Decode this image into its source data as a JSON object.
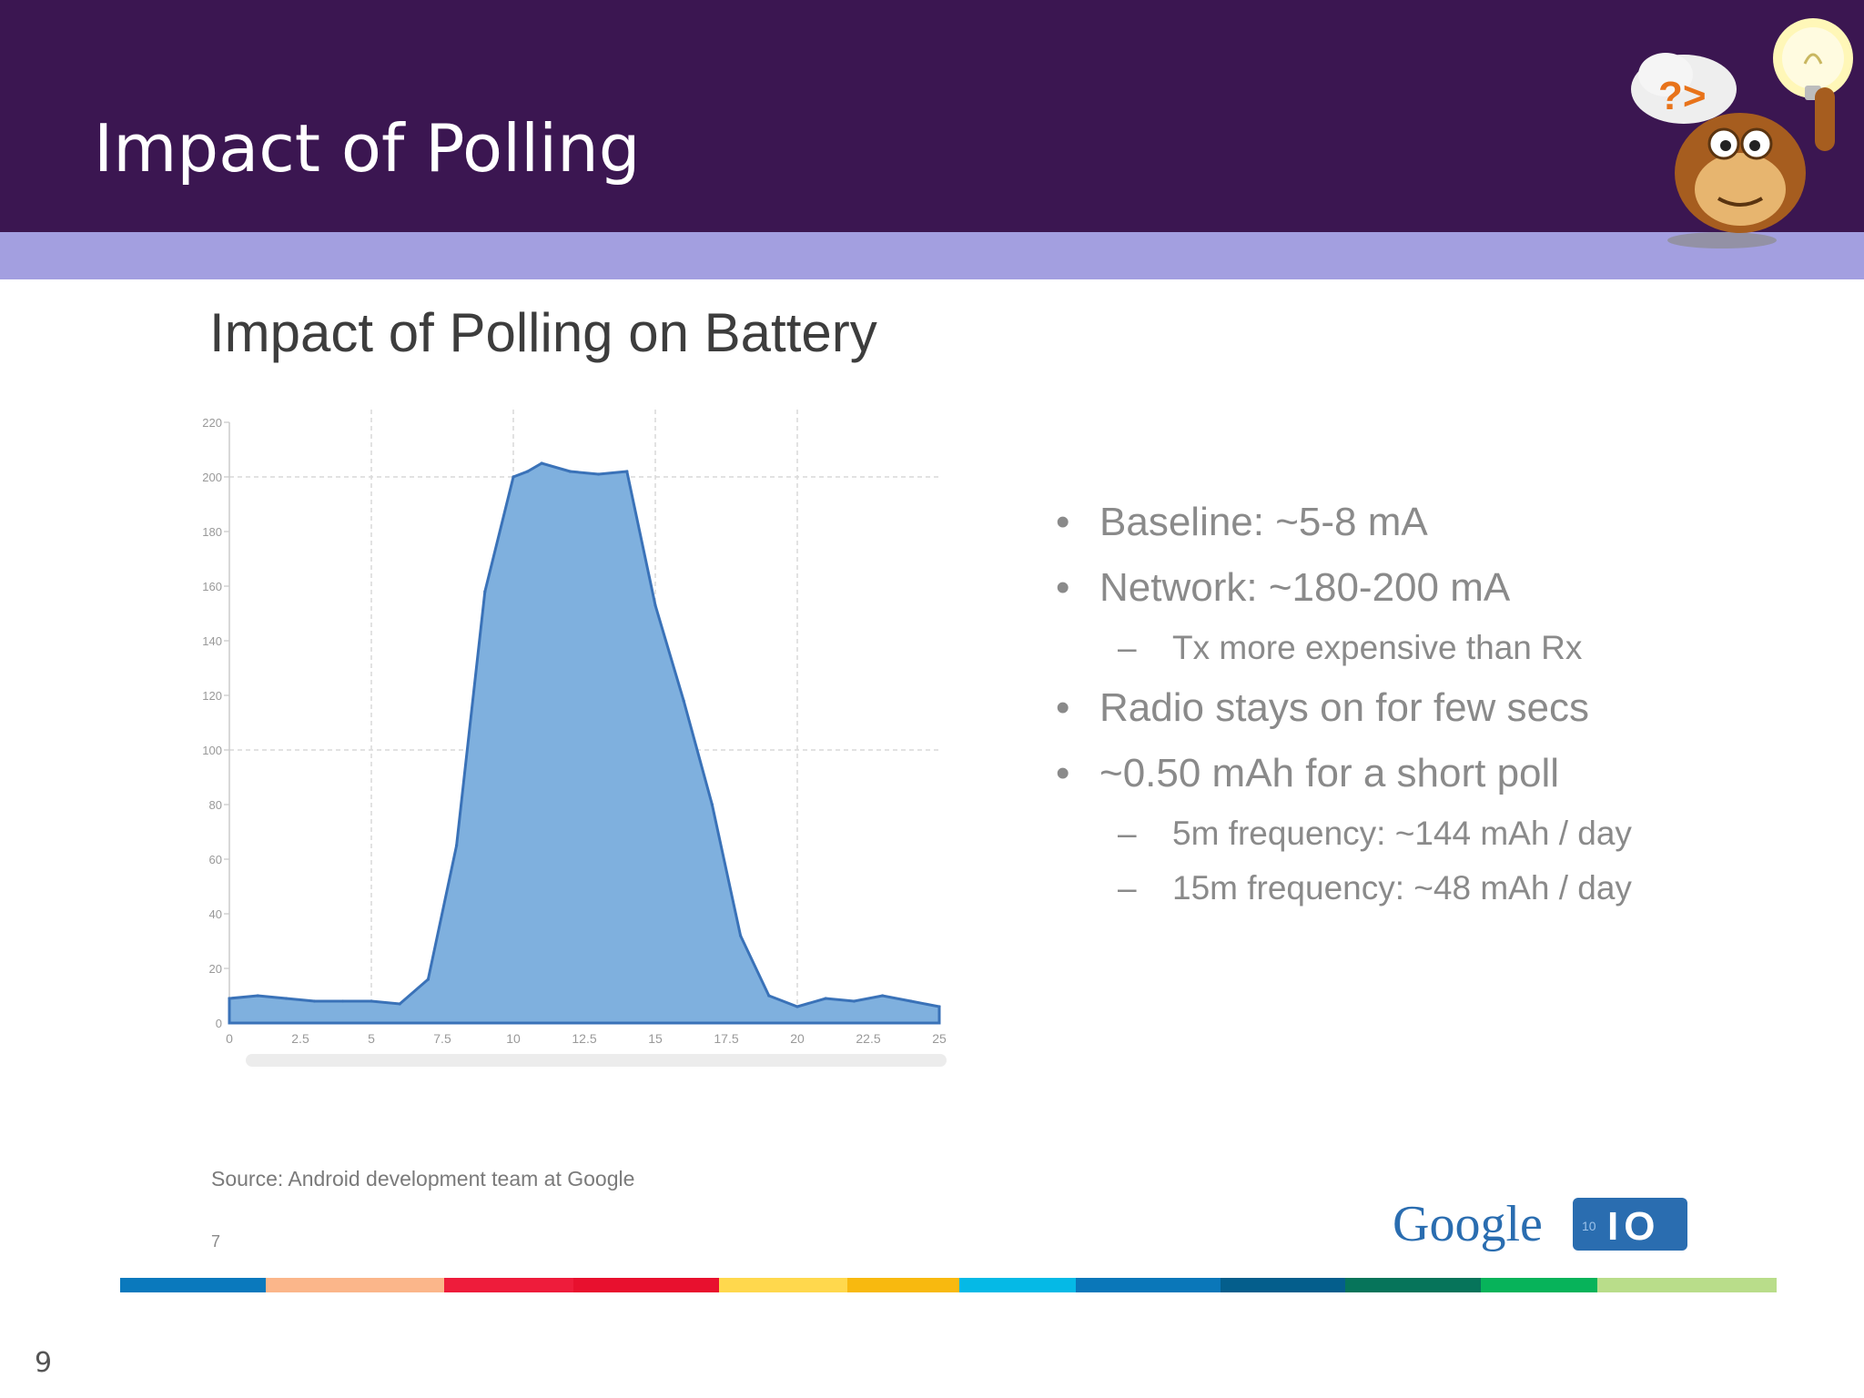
{
  "slide": {
    "title": "Impact of Polling",
    "page_number": "9"
  },
  "colors": {
    "header_bg": "#3b1651",
    "accent_band": "#a39fe0",
    "chart_fill": "#7fb0de",
    "chart_stroke": "#3a72b8",
    "google_blue": "#2a6db0"
  },
  "embedded_slide": {
    "title": "Impact of Polling on Battery",
    "bullets": [
      {
        "level": 1,
        "marker": "•",
        "text": "Baseline: ~5-8 mA"
      },
      {
        "level": 1,
        "marker": "•",
        "text": "Network: ~180-200 mA"
      },
      {
        "level": 2,
        "marker": "–",
        "text": "Tx more expensive than Rx"
      },
      {
        "level": 1,
        "marker": "•",
        "text": "Radio stays on for few secs"
      },
      {
        "level": 1,
        "marker": "•",
        "text": "~0.50 mAh for a short poll"
      },
      {
        "level": 2,
        "marker": "–",
        "text": "5m frequency: ~144 mAh / day"
      },
      {
        "level": 2,
        "marker": "–",
        "text": "15m frequency: ~48 mAh / day"
      }
    ],
    "source": "Source: Android development team at Google",
    "footnote_number": "7",
    "logo": {
      "word": "Google",
      "badge_small": "10",
      "badge_text": "IO",
      "icon": "google-io-logo-icon"
    },
    "mascot_icon": "monkey-lightbulb-mascot-icon",
    "color_stripe": [
      "#0a79bd",
      "#fbb68a",
      "#ee1c3b",
      "#e8102e",
      "#ffd84d",
      "#f8b90f",
      "#05b9e6",
      "#0a77b9",
      "#045e8c",
      "#06745a",
      "#07b35a",
      "#b9dd8a"
    ]
  },
  "chart_data": {
    "type": "area",
    "title": "",
    "xlabel": "",
    "ylabel": "",
    "xlim": [
      0,
      25
    ],
    "ylim": [
      0,
      220
    ],
    "x_ticks": [
      "0",
      "2.5",
      "5",
      "7.5",
      "10",
      "12.5",
      "15",
      "17.5",
      "20",
      "22.5",
      "25"
    ],
    "y_ticks": [
      "0",
      "20",
      "40",
      "60",
      "80",
      "100",
      "120",
      "140",
      "160",
      "180",
      "200",
      "220"
    ],
    "grid": true,
    "x": [
      0,
      1,
      2,
      3,
      4,
      5,
      6,
      7,
      8,
      9,
      10,
      10.5,
      11,
      12,
      13,
      14,
      15,
      16,
      17,
      18,
      19,
      20,
      21,
      22,
      23,
      24,
      25
    ],
    "values": [
      9,
      10,
      9,
      8,
      8,
      8,
      7,
      16,
      65,
      158,
      200,
      202,
      205,
      202,
      201,
      202,
      153,
      118,
      80,
      32,
      10,
      6,
      9,
      8,
      10,
      8,
      6
    ]
  }
}
